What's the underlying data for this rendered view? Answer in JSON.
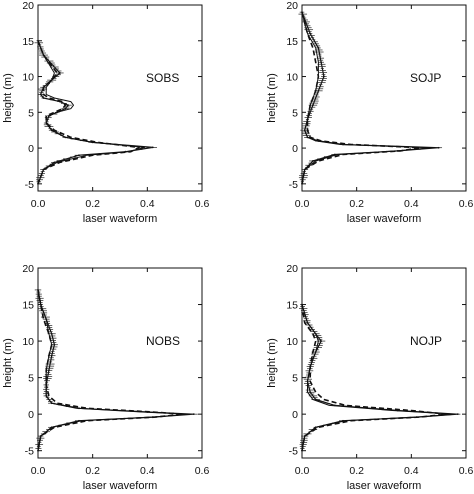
{
  "chart_data": [
    {
      "type": "line",
      "label": "SOBS",
      "xlabel": "laser waveform",
      "ylabel": "height (m)",
      "xlim": [
        0,
        0.6
      ],
      "ylim": [
        -6,
        20
      ],
      "xticks": [
        0,
        0.2,
        0.4,
        0.6
      ],
      "xtick_labels": [
        "0.0",
        "0.2",
        "0.4",
        "0.6"
      ],
      "yticks": [
        -5,
        0,
        5,
        10,
        15,
        20
      ],
      "ytick_labels": [
        "-5",
        "0",
        "5",
        "10",
        "15",
        "20"
      ],
      "grid": false,
      "series": [
        {
          "style": "noisy",
          "x": [
            0,
            0.02,
            0.08,
            0.05,
            0.02,
            0.01,
            0.02,
            0.08,
            0.11,
            0.1,
            0.07,
            0.04,
            0.03,
            0.05,
            0.1,
            0.2,
            0.42,
            0.32,
            0.15,
            0.06,
            0.02,
            0
          ],
          "y": [
            15,
            13,
            10.5,
            9.5,
            8.5,
            7.5,
            7,
            6.5,
            6,
            5.5,
            5,
            4.5,
            3.5,
            2.5,
            1.5,
            0.8,
            0.1,
            -0.5,
            -1,
            -2,
            -3,
            -5
          ]
        },
        {
          "style": "smooth",
          "x": [
            0,
            0.02,
            0.06,
            0.05,
            0.03,
            0.03,
            0.06,
            0.12,
            0.13,
            0.12,
            0.07,
            0.04,
            0.03,
            0.05,
            0.1,
            0.2,
            0.39,
            0.33,
            0.18,
            0.07,
            0.02,
            0
          ],
          "y": [
            15,
            13,
            10.5,
            9.5,
            8.5,
            7.5,
            7,
            6.5,
            6,
            5.5,
            5,
            4.5,
            3.5,
            2.5,
            1.5,
            0.8,
            0.1,
            -0.5,
            -1,
            -2,
            -3,
            -5
          ]
        },
        {
          "style": "dashed",
          "x": [
            0,
            0.02,
            0.07,
            0.05,
            0.02,
            0.02,
            0.04,
            0.09,
            0.1,
            0.09,
            0.06,
            0.03,
            0.03,
            0.06,
            0.12,
            0.22,
            0.37,
            0.34,
            0.2,
            0.08,
            0.02,
            0
          ],
          "y": [
            15,
            13,
            10.5,
            9.5,
            8.5,
            7.5,
            7,
            6.5,
            6,
            5.5,
            5,
            4.5,
            3.5,
            2.5,
            1.5,
            0.8,
            0.1,
            -0.5,
            -1,
            -2,
            -3,
            -5
          ]
        }
      ]
    },
    {
      "type": "line",
      "label": "SOJP",
      "xlabel": "laser waveform",
      "ylabel": "height (m)",
      "xlim": [
        0,
        0.6
      ],
      "ylim": [
        -6,
        20
      ],
      "xticks": [
        0,
        0.2,
        0.4,
        0.6
      ],
      "xtick_labels": [
        "0.0",
        "0.2",
        "0.4",
        "0.6"
      ],
      "yticks": [
        -5,
        0,
        5,
        10,
        15,
        20
      ],
      "ytick_labels": [
        "-5",
        "0",
        "5",
        "10",
        "15",
        "20"
      ],
      "grid": false,
      "series": [
        {
          "style": "noisy",
          "x": [
            0,
            0.03,
            0.06,
            0.07,
            0.08,
            0.06,
            0.04,
            0.02,
            0.01,
            0.02,
            0.06,
            0.15,
            0.5,
            0.35,
            0.12,
            0.04,
            0.01,
            0
          ],
          "y": [
            19,
            16,
            14,
            12,
            10,
            8,
            6,
            4,
            2.5,
            1.5,
            1,
            0.5,
            0.05,
            -0.4,
            -0.9,
            -1.8,
            -3,
            -5
          ]
        },
        {
          "style": "smooth",
          "x": [
            0,
            0.02,
            0.05,
            0.06,
            0.06,
            0.05,
            0.03,
            0.02,
            0.01,
            0.02,
            0.05,
            0.14,
            0.47,
            0.35,
            0.13,
            0.05,
            0.01,
            0
          ],
          "y": [
            19,
            16,
            14,
            12,
            10,
            8,
            6,
            4,
            2.5,
            1.5,
            1,
            0.5,
            0.05,
            -0.4,
            -0.9,
            -1.8,
            -3,
            -5
          ]
        },
        {
          "style": "dashed",
          "x": [
            0,
            0.02,
            0.04,
            0.05,
            0.06,
            0.05,
            0.03,
            0.02,
            0.02,
            0.03,
            0.07,
            0.18,
            0.43,
            0.36,
            0.15,
            0.06,
            0.01,
            0
          ],
          "y": [
            19,
            16,
            14,
            12,
            10,
            8,
            6,
            4,
            2.5,
            1.5,
            1,
            0.5,
            0.05,
            -0.4,
            -0.9,
            -1.8,
            -3,
            -5
          ]
        }
      ]
    },
    {
      "type": "line",
      "label": "NOBS",
      "xlabel": "laser waveform",
      "ylabel": "height (m)",
      "xlim": [
        0,
        0.6
      ],
      "ylim": [
        -6,
        20
      ],
      "xticks": [
        0,
        0.2,
        0.4,
        0.6
      ],
      "xtick_labels": [
        "0.0",
        "0.2",
        "0.4",
        "0.6"
      ],
      "yticks": [
        -5,
        0,
        5,
        10,
        15,
        20
      ],
      "ytick_labels": [
        "-5",
        "0",
        "5",
        "10",
        "15",
        "20"
      ],
      "grid": false,
      "series": [
        {
          "style": "noisy",
          "x": [
            0,
            0.01,
            0.03,
            0.05,
            0.06,
            0.05,
            0.04,
            0.03,
            0.03,
            0.05,
            0.15,
            0.4,
            0.57,
            0.42,
            0.15,
            0.05,
            0.01,
            0
          ],
          "y": [
            17,
            15,
            13,
            11,
            9.5,
            8,
            6,
            4,
            2.5,
            1.5,
            0.8,
            0.3,
            0,
            -0.4,
            -0.9,
            -1.8,
            -3,
            -5
          ]
        },
        {
          "style": "smooth",
          "x": [
            0,
            0.01,
            0.03,
            0.04,
            0.05,
            0.04,
            0.03,
            0.03,
            0.03,
            0.05,
            0.14,
            0.38,
            0.55,
            0.42,
            0.16,
            0.05,
            0.01,
            0
          ],
          "y": [
            17,
            15,
            13,
            11,
            9.5,
            8,
            6,
            4,
            2.5,
            1.5,
            0.8,
            0.3,
            0,
            -0.4,
            -0.9,
            -1.8,
            -3,
            -5
          ]
        },
        {
          "style": "dashed",
          "x": [
            0,
            0.01,
            0.02,
            0.04,
            0.05,
            0.04,
            0.03,
            0.03,
            0.04,
            0.07,
            0.18,
            0.42,
            0.53,
            0.43,
            0.18,
            0.06,
            0.01,
            0
          ],
          "y": [
            17,
            15,
            13,
            11,
            9.5,
            8,
            6,
            4,
            2.5,
            1.5,
            0.8,
            0.3,
            0,
            -0.4,
            -0.9,
            -1.8,
            -3,
            -5
          ]
        }
      ]
    },
    {
      "type": "line",
      "label": "NOJP",
      "xlabel": "laser waveform",
      "ylabel": "height (m)",
      "xlim": [
        0,
        0.6
      ],
      "ylim": [
        -6,
        20
      ],
      "xticks": [
        0,
        0.2,
        0.4,
        0.6
      ],
      "xtick_labels": [
        "0.0",
        "0.2",
        "0.4",
        "0.6"
      ],
      "yticks": [
        -5,
        0,
        5,
        10,
        15,
        20
      ],
      "ytick_labels": [
        "-5",
        "0",
        "5",
        "10",
        "15",
        "20"
      ],
      "grid": false,
      "series": [
        {
          "style": "noisy",
          "x": [
            0,
            0.02,
            0.05,
            0.07,
            0.05,
            0.03,
            0.02,
            0.03,
            0.05,
            0.12,
            0.35,
            0.57,
            0.42,
            0.15,
            0.05,
            0.01,
            0
          ],
          "y": [
            15,
            12.5,
            11,
            10,
            8.5,
            6.5,
            4.5,
            3,
            2,
            1.2,
            0.5,
            0,
            -0.4,
            -0.9,
            -1.8,
            -3,
            -5
          ]
        },
        {
          "style": "smooth",
          "x": [
            0,
            0.02,
            0.05,
            0.06,
            0.05,
            0.03,
            0.02,
            0.02,
            0.04,
            0.1,
            0.33,
            0.56,
            0.42,
            0.16,
            0.05,
            0.01,
            0
          ],
          "y": [
            15,
            12.5,
            11,
            10,
            8.5,
            6.5,
            4.5,
            3,
            2,
            1.2,
            0.5,
            0,
            -0.4,
            -0.9,
            -1.8,
            -3,
            -5
          ]
        },
        {
          "style": "dashed",
          "x": [
            0,
            0.01,
            0.04,
            0.05,
            0.04,
            0.03,
            0.03,
            0.05,
            0.08,
            0.16,
            0.4,
            0.53,
            0.43,
            0.18,
            0.06,
            0.01,
            0
          ],
          "y": [
            15,
            12.5,
            11,
            10,
            8.5,
            6.5,
            4.5,
            3,
            2,
            1.2,
            0.5,
            0,
            -0.4,
            -0.9,
            -1.8,
            -3,
            -5
          ]
        }
      ]
    }
  ]
}
